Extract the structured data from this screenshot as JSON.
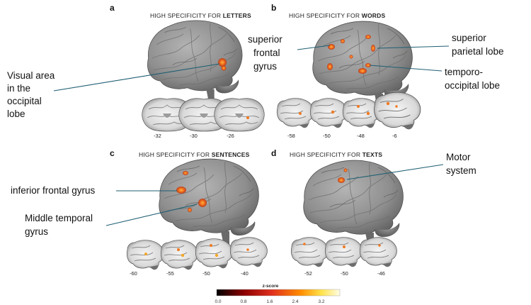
{
  "panels": {
    "a": {
      "letter": "a",
      "title_prefix": "HIGH SPECIFICITY FOR ",
      "title_bold": "LETTERS",
      "annotation_lines": [
        "Visual area",
        "in the",
        "occipital",
        "lobe"
      ],
      "slices": [
        "-32",
        "-30",
        "-26"
      ]
    },
    "b": {
      "letter": "b",
      "title_prefix": "HIGH SPECIFICITY FOR ",
      "title_bold": "WORDS",
      "annotations": [
        {
          "lines": [
            "superior",
            "frontal",
            "gyrus"
          ]
        },
        {
          "lines": [
            "superior",
            "parietal lobe"
          ]
        },
        {
          "lines": [
            "temporo-",
            "occipital lobe"
          ]
        }
      ],
      "slices": [
        "-58",
        "-50",
        "-48",
        "-6"
      ]
    },
    "c": {
      "letter": "c",
      "title_prefix": "HIGH SPECIFICITY FOR ",
      "title_bold": "SENTENCES",
      "annotations": [
        {
          "lines": [
            "inferior frontal gyrus"
          ]
        },
        {
          "lines": [
            "Middle temporal",
            "gyrus"
          ]
        }
      ],
      "slices": [
        "-60",
        "-55",
        "-50",
        "-40"
      ]
    },
    "d": {
      "letter": "d",
      "title_prefix": "HIGH SPECIFICITY FOR ",
      "title_bold": "TEXTS",
      "annotations": [
        {
          "lines": [
            "Motor",
            "system"
          ]
        }
      ],
      "slices": [
        "-52",
        "-50",
        "-46"
      ]
    }
  },
  "colorbar": {
    "title": "z-score",
    "ticks": [
      "0.0",
      "0.8",
      "1.6",
      "2.4",
      "3.2"
    ],
    "colors": [
      "#000000",
      "#8b0000",
      "#e0301e",
      "#ff8c00",
      "#ffe24a",
      "#fffde6"
    ]
  },
  "colors": {
    "leader": "#1f5f73",
    "brain": "#8a8a8a",
    "activation_hot": "#e8581c",
    "activation_warm": "#f59a2a"
  }
}
